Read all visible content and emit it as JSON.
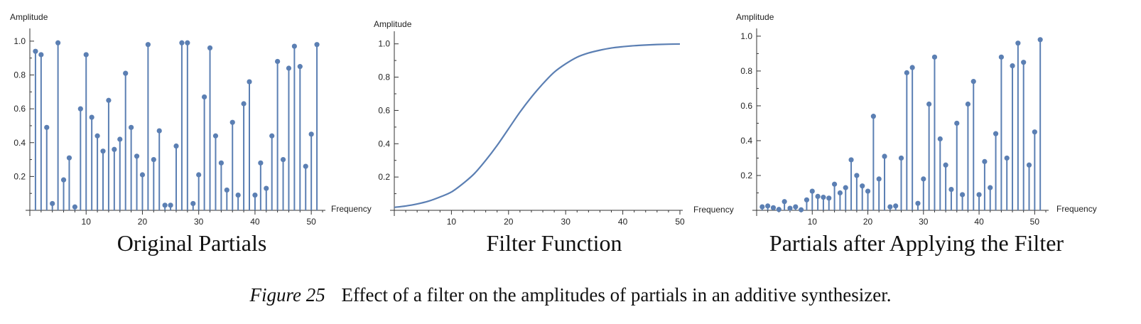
{
  "colors": {
    "series": "#5b7fb3",
    "axis": "#333333"
  },
  "caption": {
    "label": "Figure 25",
    "text": "Effect of a filter on the amplitudes of partials in an additive synthesizer."
  },
  "chart_data": [
    {
      "type": "stem",
      "caption": "Original Partials",
      "xlabel": "Frequency",
      "ylabel": "Amplitude",
      "xlim": [
        0,
        52
      ],
      "ylim": [
        0,
        1.05
      ],
      "xticks": [
        10,
        20,
        30,
        40,
        50
      ],
      "yticks": [
        0.2,
        0.4,
        0.6,
        0.8,
        1.0
      ],
      "x": [
        1,
        2,
        3,
        4,
        5,
        6,
        7,
        8,
        9,
        10,
        11,
        12,
        13,
        14,
        15,
        16,
        17,
        18,
        19,
        20,
        21,
        22,
        23,
        24,
        25,
        26,
        27,
        28,
        29,
        30,
        31,
        32,
        33,
        34,
        35,
        36,
        37,
        38,
        39,
        40,
        41,
        42,
        43,
        44,
        45,
        46,
        47,
        48,
        49,
        50,
        51
      ],
      "values": [
        0.94,
        0.92,
        0.49,
        0.04,
        0.99,
        0.18,
        0.31,
        0.02,
        0.6,
        0.92,
        0.55,
        0.44,
        0.35,
        0.65,
        0.36,
        0.42,
        0.81,
        0.49,
        0.32,
        0.21,
        0.98,
        0.3,
        0.47,
        0.03,
        0.03,
        0.38,
        0.99,
        0.99,
        0.04,
        0.21,
        0.67,
        0.96,
        0.44,
        0.28,
        0.12,
        0.52,
        0.09,
        0.63,
        0.76,
        0.09,
        0.28,
        0.13,
        0.44,
        0.88,
        0.3,
        0.84,
        0.97,
        0.85,
        0.26,
        0.45,
        0.98
      ]
    },
    {
      "type": "line",
      "caption": "Filter Function",
      "xlabel": "Frequency",
      "ylabel": "Amplitude",
      "xlim": [
        0,
        50
      ],
      "ylim": [
        0,
        1.05
      ],
      "xticks": [
        10,
        20,
        30,
        40,
        50
      ],
      "yticks": [
        0.2,
        0.4,
        0.6,
        0.8,
        1.0
      ],
      "x": [
        0,
        2,
        4,
        6,
        8,
        10,
        12,
        14,
        16,
        18,
        20,
        22,
        24,
        26,
        28,
        30,
        32,
        34,
        36,
        38,
        40,
        42,
        44,
        46,
        48,
        50
      ],
      "values": [
        0.018,
        0.026,
        0.038,
        0.055,
        0.08,
        0.11,
        0.16,
        0.22,
        0.3,
        0.39,
        0.49,
        0.59,
        0.68,
        0.76,
        0.83,
        0.88,
        0.92,
        0.945,
        0.962,
        0.975,
        0.983,
        0.989,
        0.993,
        0.996,
        0.998,
        0.999
      ]
    },
    {
      "type": "stem",
      "caption": "Partials after Applying the Filter",
      "xlabel": "Frequency",
      "ylabel": "Amplitude",
      "xlim": [
        0,
        52
      ],
      "ylim": [
        0,
        1.02
      ],
      "xticks": [
        10,
        20,
        30,
        40,
        50
      ],
      "yticks": [
        0.2,
        0.4,
        0.6,
        0.8,
        1.0
      ],
      "x": [
        1,
        2,
        3,
        4,
        5,
        6,
        7,
        8,
        9,
        10,
        11,
        12,
        13,
        14,
        15,
        16,
        17,
        18,
        19,
        20,
        21,
        22,
        23,
        24,
        25,
        26,
        27,
        28,
        29,
        30,
        31,
        32,
        33,
        34,
        35,
        36,
        37,
        38,
        39,
        40,
        41,
        42,
        43,
        44,
        45,
        46,
        47,
        48,
        49,
        50,
        51
      ],
      "values": [
        0.02,
        0.025,
        0.015,
        0.005,
        0.05,
        0.012,
        0.02,
        0.003,
        0.06,
        0.11,
        0.08,
        0.075,
        0.07,
        0.15,
        0.1,
        0.13,
        0.29,
        0.2,
        0.14,
        0.11,
        0.54,
        0.18,
        0.31,
        0.02,
        0.025,
        0.3,
        0.79,
        0.82,
        0.04,
        0.18,
        0.61,
        0.88,
        0.41,
        0.26,
        0.12,
        0.5,
        0.09,
        0.61,
        0.74,
        0.09,
        0.28,
        0.13,
        0.44,
        0.88,
        0.3,
        0.83,
        0.96,
        0.85,
        0.26,
        0.45,
        0.98
      ]
    }
  ]
}
